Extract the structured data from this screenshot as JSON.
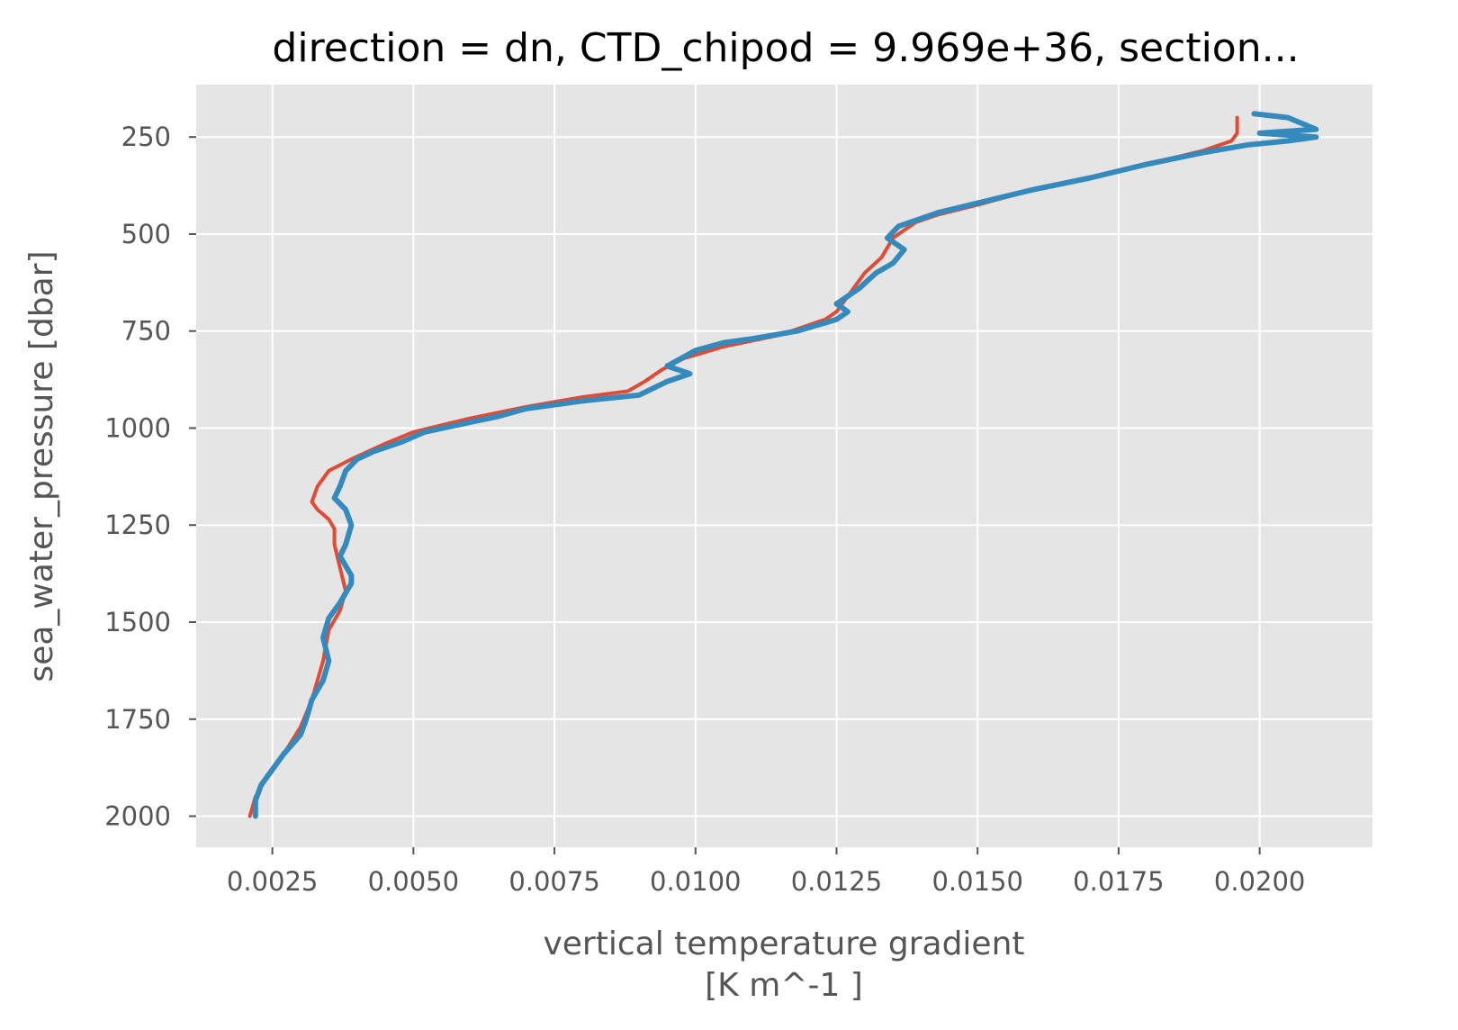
{
  "chart_data": {
    "type": "line",
    "title": "direction = dn, CTD_chipod = 9.969e+36, section...",
    "xlabel": "vertical temperature gradient",
    "xlabel_units": "[K m^-1 ]",
    "ylabel": "sea_water_pressure [dbar]",
    "xlim": [
      0.00115,
      0.022
    ],
    "ylim": [
      2080,
      115
    ],
    "y_inverted": true,
    "grid": true,
    "background": "#e5e5e5",
    "x_ticks": [
      0.0025,
      0.005,
      0.0075,
      0.01,
      0.0125,
      0.015,
      0.0175,
      0.02
    ],
    "x_tick_labels": [
      "0.0025",
      "0.0050",
      "0.0075",
      "0.0100",
      "0.0125",
      "0.0150",
      "0.0175",
      "0.0200"
    ],
    "y_ticks": [
      250,
      500,
      750,
      1000,
      1250,
      1500,
      1750,
      2000
    ],
    "y_tick_labels": [
      "250",
      "500",
      "750",
      "1000",
      "1250",
      "1500",
      "1750",
      "2000"
    ],
    "series": [
      {
        "color": "#e24a33",
        "points": [
          [
            0.0196,
            200
          ],
          [
            0.0196,
            240
          ],
          [
            0.0195,
            260
          ],
          [
            0.019,
            285
          ],
          [
            0.018,
            320
          ],
          [
            0.017,
            355
          ],
          [
            0.016,
            385
          ],
          [
            0.015,
            425
          ],
          [
            0.0143,
            450
          ],
          [
            0.0139,
            470
          ],
          [
            0.0137,
            490
          ],
          [
            0.0135,
            510
          ],
          [
            0.0133,
            560
          ],
          [
            0.013,
            600
          ],
          [
            0.0128,
            640
          ],
          [
            0.0126,
            680
          ],
          [
            0.0125,
            700
          ],
          [
            0.0123,
            720
          ],
          [
            0.0115,
            760
          ],
          [
            0.0105,
            790
          ],
          [
            0.0098,
            820
          ],
          [
            0.0094,
            850
          ],
          [
            0.0091,
            880
          ],
          [
            0.0088,
            905
          ],
          [
            0.008,
            920
          ],
          [
            0.007,
            945
          ],
          [
            0.006,
            975
          ],
          [
            0.005,
            1010
          ],
          [
            0.0045,
            1040
          ],
          [
            0.0039,
            1080
          ],
          [
            0.0035,
            1110
          ],
          [
            0.0033,
            1150
          ],
          [
            0.0032,
            1190
          ],
          [
            0.0033,
            1210
          ],
          [
            0.0035,
            1235
          ],
          [
            0.0036,
            1260
          ],
          [
            0.0036,
            1300
          ],
          [
            0.0037,
            1360
          ],
          [
            0.0038,
            1420
          ],
          [
            0.0037,
            1470
          ],
          [
            0.0035,
            1520
          ],
          [
            0.0034,
            1600
          ],
          [
            0.0032,
            1700
          ],
          [
            0.003,
            1770
          ],
          [
            0.0027,
            1840
          ],
          [
            0.0024,
            1900
          ],
          [
            0.0022,
            1950
          ],
          [
            0.0021,
            2000
          ]
        ]
      },
      {
        "color": "#348abd",
        "points": [
          [
            0.0199,
            190
          ],
          [
            0.0205,
            200
          ],
          [
            0.021,
            230
          ],
          [
            0.02,
            240
          ],
          [
            0.021,
            250
          ],
          [
            0.0205,
            260
          ],
          [
            0.0198,
            270
          ],
          [
            0.019,
            290
          ],
          [
            0.018,
            320
          ],
          [
            0.017,
            355
          ],
          [
            0.016,
            385
          ],
          [
            0.015,
            420
          ],
          [
            0.0143,
            445
          ],
          [
            0.0138,
            470
          ],
          [
            0.0136,
            480
          ],
          [
            0.0134,
            510
          ],
          [
            0.0137,
            540
          ],
          [
            0.0135,
            575
          ],
          [
            0.0132,
            600
          ],
          [
            0.0129,
            640
          ],
          [
            0.0125,
            680
          ],
          [
            0.0127,
            700
          ],
          [
            0.0125,
            720
          ],
          [
            0.0118,
            750
          ],
          [
            0.011,
            770
          ],
          [
            0.0105,
            780
          ],
          [
            0.01,
            800
          ],
          [
            0.0095,
            840
          ],
          [
            0.0099,
            860
          ],
          [
            0.0095,
            880
          ],
          [
            0.009,
            915
          ],
          [
            0.008,
            930
          ],
          [
            0.007,
            950
          ],
          [
            0.0065,
            970
          ],
          [
            0.006,
            985
          ],
          [
            0.0052,
            1010
          ],
          [
            0.0048,
            1035
          ],
          [
            0.0043,
            1060
          ],
          [
            0.004,
            1080
          ],
          [
            0.0038,
            1110
          ],
          [
            0.0037,
            1150
          ],
          [
            0.0036,
            1180
          ],
          [
            0.0038,
            1210
          ],
          [
            0.0039,
            1250
          ],
          [
            0.0038,
            1300
          ],
          [
            0.0037,
            1330
          ],
          [
            0.0039,
            1380
          ],
          [
            0.0039,
            1400
          ],
          [
            0.0037,
            1450
          ],
          [
            0.0035,
            1490
          ],
          [
            0.0034,
            1540
          ],
          [
            0.0035,
            1600
          ],
          [
            0.0034,
            1650
          ],
          [
            0.0032,
            1700
          ],
          [
            0.0031,
            1750
          ],
          [
            0.003,
            1790
          ],
          [
            0.0027,
            1840
          ],
          [
            0.0025,
            1880
          ],
          [
            0.0023,
            1920
          ],
          [
            0.0022,
            1960
          ],
          [
            0.0022,
            2000
          ]
        ]
      }
    ]
  }
}
